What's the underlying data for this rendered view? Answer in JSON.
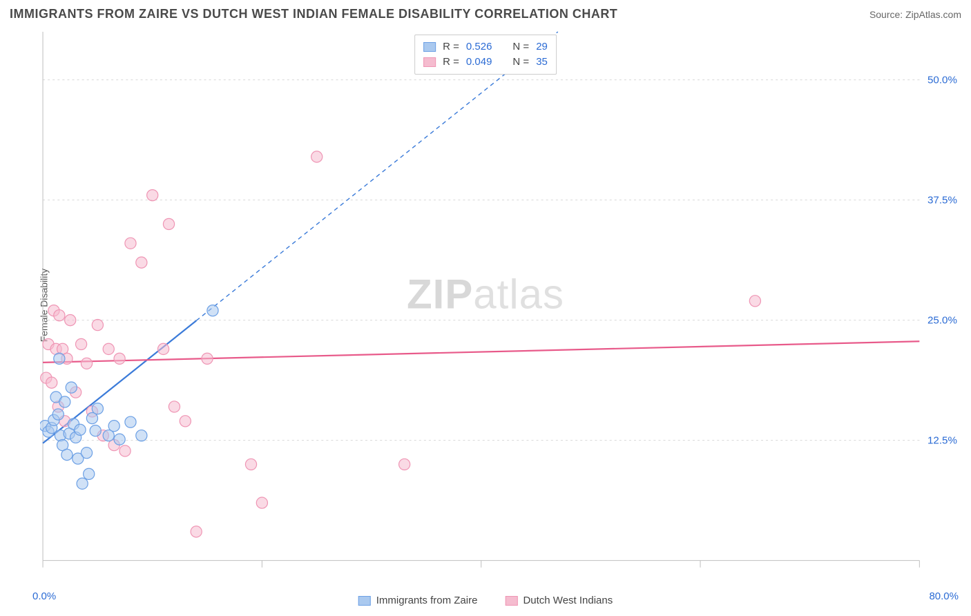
{
  "header": {
    "title": "IMMIGRANTS FROM ZAIRE VS DUTCH WEST INDIAN FEMALE DISABILITY CORRELATION CHART",
    "source_prefix": "Source: ",
    "source": "ZipAtlas.com"
  },
  "chart": {
    "type": "scatter",
    "ylabel": "Female Disability",
    "background_color": "#ffffff",
    "grid_color": "#d8d8d8",
    "axis_color": "#bfbfbf",
    "tick_label_color": "#2b6bd4",
    "xlim": [
      0,
      80
    ],
    "ylim": [
      0,
      55
    ],
    "xticks": [
      0,
      20,
      40,
      60,
      80
    ],
    "xtick_labels": [
      "0.0%",
      "",
      "",
      "",
      "80.0%"
    ],
    "yticks": [
      12.5,
      25.0,
      37.5,
      50.0
    ],
    "ytick_labels": [
      "12.5%",
      "25.0%",
      "37.5%",
      "50.0%"
    ],
    "marker_radius": 8,
    "marker_opacity": 0.55,
    "marker_stroke_width": 1.2,
    "trend_line_width": 2.2,
    "trend_dash": "6,5",
    "series": [
      {
        "key": "zaire",
        "label": "Immigrants from Zaire",
        "color": "#3b7bd9",
        "fill": "#aac9ef",
        "stroke": "#6ca0e5",
        "r_value": "0.526",
        "n_value": "29",
        "trend": {
          "x1": 0,
          "y1": 12.2,
          "x2": 47,
          "y2": 55,
          "solid_until_x": 14
        },
        "points": [
          [
            0.2,
            14.0
          ],
          [
            0.5,
            13.4
          ],
          [
            0.8,
            13.8
          ],
          [
            1.0,
            14.6
          ],
          [
            1.2,
            17.0
          ],
          [
            1.4,
            15.2
          ],
          [
            1.5,
            21.0
          ],
          [
            1.6,
            13.0
          ],
          [
            1.8,
            12.0
          ],
          [
            2.0,
            16.5
          ],
          [
            2.2,
            11.0
          ],
          [
            2.4,
            13.2
          ],
          [
            2.6,
            18.0
          ],
          [
            2.8,
            14.2
          ],
          [
            3.0,
            12.8
          ],
          [
            3.2,
            10.6
          ],
          [
            3.4,
            13.6
          ],
          [
            3.6,
            8.0
          ],
          [
            4.0,
            11.2
          ],
          [
            4.2,
            9.0
          ],
          [
            4.5,
            14.8
          ],
          [
            4.8,
            13.5
          ],
          [
            5.0,
            15.8
          ],
          [
            6.0,
            13.0
          ],
          [
            6.5,
            14.0
          ],
          [
            7.0,
            12.6
          ],
          [
            8.0,
            14.4
          ],
          [
            9.0,
            13.0
          ],
          [
            15.5,
            26.0
          ]
        ]
      },
      {
        "key": "dutch",
        "label": "Dutch West Indians",
        "color": "#e85a8a",
        "fill": "#f5bccf",
        "stroke": "#ef95b4",
        "r_value": "0.049",
        "n_value": "35",
        "trend": {
          "x1": 0,
          "y1": 20.6,
          "x2": 80,
          "y2": 22.8,
          "solid_until_x": 80
        },
        "points": [
          [
            0.3,
            19.0
          ],
          [
            0.5,
            22.5
          ],
          [
            0.8,
            18.5
          ],
          [
            1.0,
            26.0
          ],
          [
            1.2,
            22.0
          ],
          [
            1.4,
            16.0
          ],
          [
            1.5,
            25.5
          ],
          [
            1.8,
            22.0
          ],
          [
            2.0,
            14.5
          ],
          [
            2.2,
            21.0
          ],
          [
            2.5,
            25.0
          ],
          [
            3.0,
            17.5
          ],
          [
            3.5,
            22.5
          ],
          [
            4.0,
            20.5
          ],
          [
            4.5,
            15.5
          ],
          [
            5.0,
            24.5
          ],
          [
            5.5,
            13.0
          ],
          [
            6.0,
            22.0
          ],
          [
            6.5,
            12.0
          ],
          [
            7.0,
            21.0
          ],
          [
            7.5,
            11.4
          ],
          [
            8.0,
            33.0
          ],
          [
            9.0,
            31.0
          ],
          [
            10.0,
            38.0
          ],
          [
            11.0,
            22.0
          ],
          [
            11.5,
            35.0
          ],
          [
            12.0,
            16.0
          ],
          [
            13.0,
            14.5
          ],
          [
            14.0,
            3.0
          ],
          [
            15.0,
            21.0
          ],
          [
            19.0,
            10.0
          ],
          [
            20.0,
            6.0
          ],
          [
            25.0,
            42.0
          ],
          [
            33.0,
            10.0
          ],
          [
            65.0,
            27.0
          ]
        ]
      }
    ],
    "watermark": {
      "part1": "ZIP",
      "part2": "atlas"
    }
  },
  "legend_top": {
    "r_label": "R  =",
    "n_label": "N  ="
  }
}
